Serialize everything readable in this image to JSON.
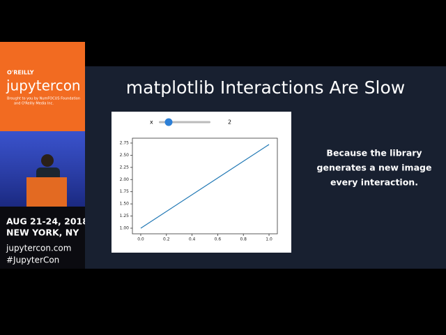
{
  "sidebar": {
    "brand": "O'REILLY",
    "logo": "jupytercon",
    "credit": [
      "Brought to you by NumFOCUS Foundation",
      "and O'Reilly Media Inc."
    ],
    "dates": "AUG 21-24, 2018",
    "location": "NEW YORK, NY",
    "website": "jupytercon.com",
    "hashtag": "#JupyterCon"
  },
  "slide": {
    "title": "matplotlib Interactions Are Slow",
    "caption": [
      "Because the library",
      "generates a new image",
      "every interaction."
    ],
    "widget": {
      "label": "x",
      "value": 2
    },
    "plot": {
      "type": "line",
      "x": [
        0,
        1
      ],
      "values": [
        1,
        2.72
      ],
      "color": "#1f77b4",
      "xlim": [
        -0.065,
        1.065
      ],
      "ylim": [
        0.885,
        2.85
      ],
      "xticks": [
        {
          "value": 0,
          "label": "0.0"
        },
        {
          "value": 0.2,
          "label": "0.2"
        },
        {
          "value": 0.4,
          "label": "0.4"
        },
        {
          "value": 0.6,
          "label": "0.6"
        },
        {
          "value": 0.8,
          "label": "0.8"
        },
        {
          "value": 1,
          "label": "1.0"
        }
      ],
      "yticks": [
        {
          "value": 1,
          "label": "1.00"
        },
        {
          "value": 1.25,
          "label": "1.25"
        },
        {
          "value": 1.5,
          "label": "1.50"
        },
        {
          "value": 1.75,
          "label": "1.75"
        },
        {
          "value": 2,
          "label": "2.00"
        },
        {
          "value": 2.25,
          "label": "2.25"
        },
        {
          "value": 2.5,
          "label": "2.50"
        },
        {
          "value": 2.75,
          "label": "2.75"
        }
      ]
    }
  }
}
